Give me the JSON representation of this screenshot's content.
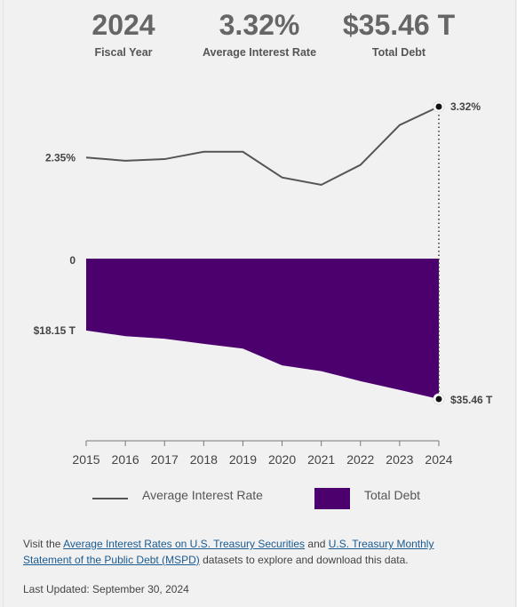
{
  "stats": [
    {
      "value": "2024",
      "label": "Fiscal Year"
    },
    {
      "value": "3.32%",
      "label": "Average Interest Rate"
    },
    {
      "value": "$35.46 T",
      "label": "Total Debt"
    }
  ],
  "chart_data": {
    "type": "line+area",
    "categories": [
      "2015",
      "2016",
      "2017",
      "2018",
      "2019",
      "2020",
      "2021",
      "2022",
      "2023",
      "2024"
    ],
    "series": [
      {
        "name": "Average Interest Rate",
        "type": "line",
        "unit": "%",
        "color": "#555555",
        "values": [
          2.35,
          2.29,
          2.32,
          2.46,
          2.46,
          1.97,
          1.83,
          2.21,
          2.97,
          3.32
        ]
      },
      {
        "name": "Total Debt",
        "type": "area",
        "unit": "$ T",
        "color": "#4b006e",
        "values": [
          18.15,
          19.57,
          20.24,
          21.52,
          22.72,
          26.95,
          28.43,
          30.93,
          33.17,
          35.46
        ]
      }
    ],
    "rate_axis_labels": [
      "2.35%",
      "3.32%"
    ],
    "debt_axis_labels": [
      "0",
      "$18.15 T",
      "$35.46 T"
    ],
    "highlight_index": 9,
    "legend_position": "bottom"
  },
  "legend": {
    "line_label": "Average Interest Rate",
    "area_label": "Total Debt"
  },
  "footer": {
    "visit_prefix": "Visit the",
    "link1": "Average Interest Rates on U.S. Treasury Securities",
    "and": "and",
    "link2": "U.S. Treasury Monthly Statement of the Public Debt (MSPD)",
    "suffix": "datasets to explore and download this data.",
    "last_updated": "Last Updated: September 30, 2024"
  }
}
